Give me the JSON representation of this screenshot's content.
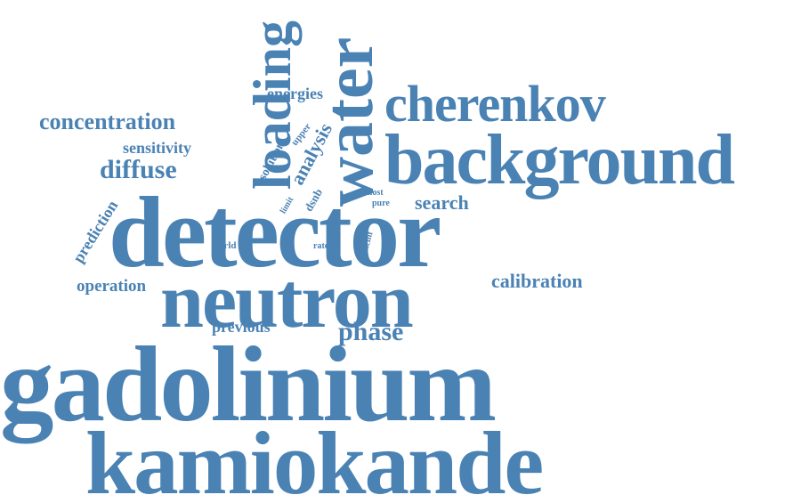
{
  "colors": {
    "word": "#4a82b4",
    "background": "#ffffff"
  },
  "words": {
    "gadolinium": "gadolinium",
    "kamiokande": "kamiokande",
    "detector": "detector",
    "neutron": "neutron",
    "background": "background",
    "cherenkov": "cherenkov",
    "water": "water",
    "loading": "loading",
    "concentration": "concentration",
    "diffuse": "diffuse",
    "sensitivity": "sensitivity",
    "energies": "energies",
    "analysis": "analysis",
    "solution": "solution",
    "upper": "upper",
    "limit": "limit",
    "dsnb": "dsnb",
    "most": "most",
    "pure": "pure",
    "search": "search",
    "prediction": "prediction",
    "world": "world",
    "rate": "rate",
    "hcinf": "hcinf",
    "operation": "operation",
    "calibration": "calibration",
    "previous": "previous",
    "phase": "phase"
  }
}
